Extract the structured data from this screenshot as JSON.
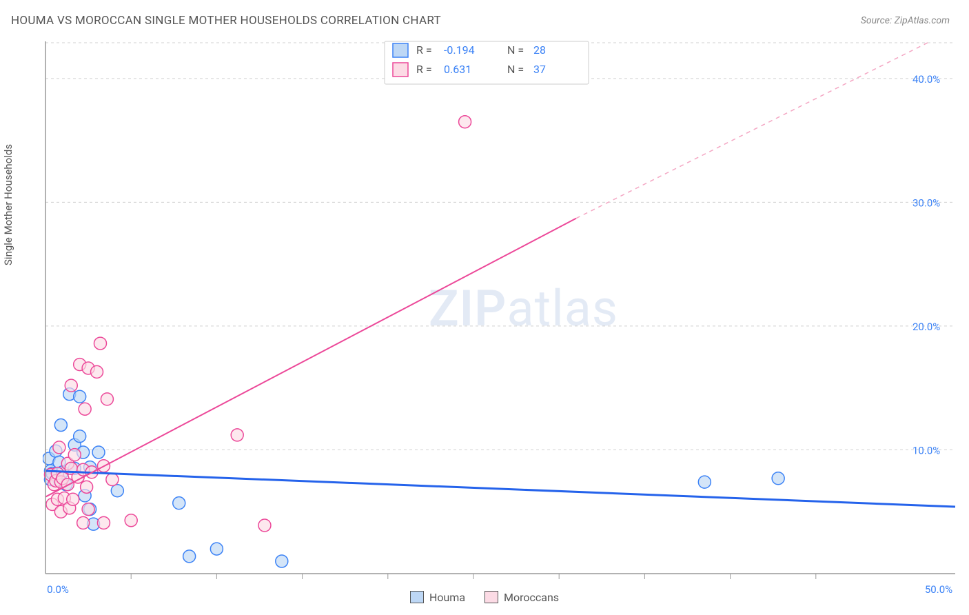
{
  "title": "HOUMA VS MOROCCAN SINGLE MOTHER HOUSEHOLDS CORRELATION CHART",
  "source": "Source: ZipAtlas.com",
  "ylabel": "Single Mother Households",
  "watermark_bold": "ZIP",
  "watermark_rest": "atlas",
  "chart": {
    "type": "scatter",
    "xlim": [
      0,
      50
    ],
    "ylim": [
      0,
      43
    ],
    "xtick_labels": [
      "0.0%",
      "50.0%"
    ],
    "xtick_positions": [
      0,
      50
    ],
    "xtick_minor": [
      5,
      10,
      15,
      20,
      25,
      30,
      35,
      40,
      45
    ],
    "ytick_labels": [
      "10.0%",
      "20.0%",
      "30.0%",
      "40.0%"
    ],
    "ytick_positions": [
      10,
      20,
      30,
      40
    ],
    "grid_color": "#d0d0d0",
    "axis_color": "#999999",
    "background_color": "#ffffff",
    "marker_radius": 9,
    "series": [
      {
        "name": "Houma",
        "color_fill": "#bdd7f5",
        "color_stroke": "#3b82f6",
        "R": -0.194,
        "N": 28,
        "trend": {
          "x1": 0,
          "y1": 8.3,
          "x2": 50,
          "y2": 5.4,
          "dash_from_x": null
        },
        "points": [
          [
            0.2,
            9.3
          ],
          [
            0.3,
            8.3
          ],
          [
            0.3,
            7.6
          ],
          [
            0.4,
            8.1
          ],
          [
            0.6,
            9.9
          ],
          [
            0.8,
            9.0
          ],
          [
            0.8,
            7.6
          ],
          [
            0.9,
            12.0
          ],
          [
            1.0,
            8.2
          ],
          [
            1.2,
            7.2
          ],
          [
            1.4,
            14.5
          ],
          [
            1.7,
            10.4
          ],
          [
            1.7,
            8.5
          ],
          [
            2.0,
            14.3
          ],
          [
            2.0,
            11.1
          ],
          [
            2.2,
            9.8
          ],
          [
            2.3,
            6.3
          ],
          [
            2.6,
            8.6
          ],
          [
            2.6,
            5.2
          ],
          [
            2.8,
            4.0
          ],
          [
            3.1,
            9.8
          ],
          [
            4.2,
            6.7
          ],
          [
            7.8,
            5.7
          ],
          [
            8.4,
            1.4
          ],
          [
            10.0,
            2.0
          ],
          [
            13.8,
            1.0
          ],
          [
            38.5,
            7.4
          ],
          [
            42.8,
            7.7
          ]
        ]
      },
      {
        "name": "Moroccans",
        "color_fill": "#fcdbe5",
        "color_stroke": "#ec4899",
        "R": 0.631,
        "N": 37,
        "trend": {
          "x1": 0,
          "y1": 6.2,
          "x2": 50,
          "y2": 42.5,
          "dash_from_x": 31
        },
        "points": [
          [
            0.3,
            8.0
          ],
          [
            0.4,
            5.6
          ],
          [
            0.5,
            7.2
          ],
          [
            0.6,
            7.5
          ],
          [
            0.7,
            6.0
          ],
          [
            0.7,
            8.1
          ],
          [
            0.8,
            10.2
          ],
          [
            0.9,
            7.4
          ],
          [
            0.9,
            5.0
          ],
          [
            1.0,
            7.7
          ],
          [
            1.1,
            6.1
          ],
          [
            1.3,
            8.9
          ],
          [
            1.3,
            7.2
          ],
          [
            1.4,
            5.3
          ],
          [
            1.5,
            8.5
          ],
          [
            1.5,
            15.2
          ],
          [
            1.6,
            6.0
          ],
          [
            1.7,
            9.6
          ],
          [
            1.9,
            7.8
          ],
          [
            2.0,
            16.9
          ],
          [
            2.2,
            8.4
          ],
          [
            2.2,
            4.1
          ],
          [
            2.3,
            13.3
          ],
          [
            2.4,
            7.0
          ],
          [
            2.5,
            16.6
          ],
          [
            2.5,
            5.2
          ],
          [
            2.7,
            8.2
          ],
          [
            3.0,
            16.3
          ],
          [
            3.2,
            18.6
          ],
          [
            3.4,
            4.1
          ],
          [
            3.4,
            8.7
          ],
          [
            3.6,
            14.1
          ],
          [
            3.9,
            7.6
          ],
          [
            5.0,
            4.3
          ],
          [
            11.2,
            11.2
          ],
          [
            12.8,
            3.9
          ],
          [
            24.5,
            36.5
          ]
        ]
      }
    ]
  },
  "legend_bottom": [
    {
      "label": "Houma",
      "swatch": "blue"
    },
    {
      "label": "Moroccans",
      "swatch": "pink"
    }
  ],
  "stats_legend": {
    "rows": [
      {
        "swatch": "blue",
        "r_label": "R =",
        "r_val": "-0.194",
        "n_label": "N =",
        "n_val": "28"
      },
      {
        "swatch": "pink",
        "r_label": "R =",
        "r_val": " 0.631",
        "n_label": "N =",
        "n_val": "37"
      }
    ]
  }
}
